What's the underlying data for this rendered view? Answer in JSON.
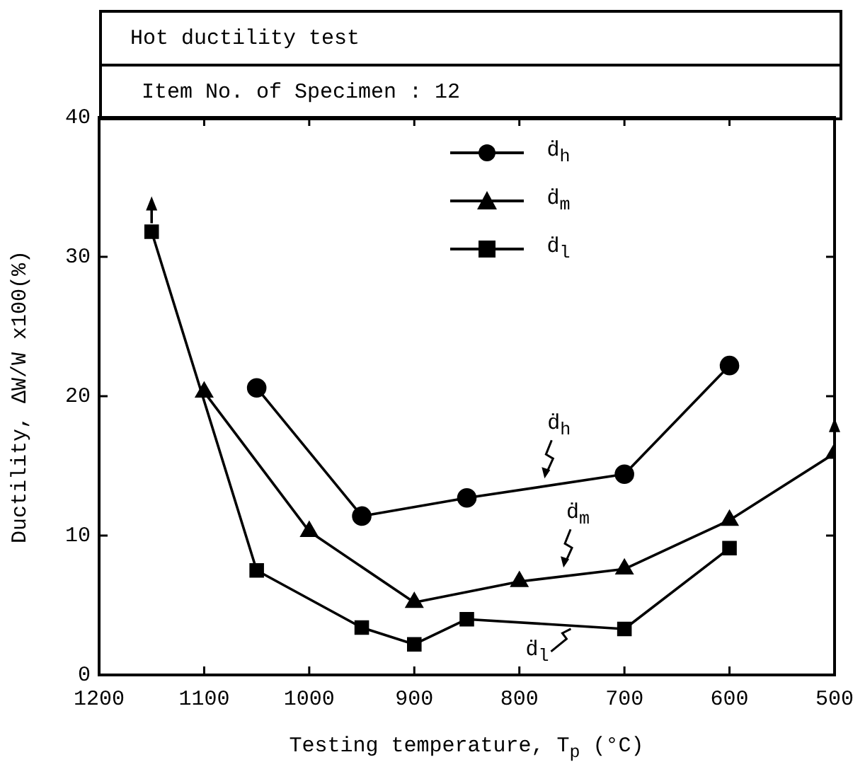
{
  "chart_data": {
    "type": "line",
    "title": "Hot ductility test",
    "subtitle": "Item No. of Specimen : 12",
    "xlabel": "Testing temperature, T$_{p}$ (°C)",
    "ylabel": "Ductility,   ΔW/W x100(%)",
    "xlim": [
      1200,
      500
    ],
    "xticks": [
      1200,
      1100,
      1000,
      900,
      800,
      700,
      600,
      500
    ],
    "ylim": [
      0,
      40
    ],
    "yticks": [
      0,
      10,
      20,
      30,
      40
    ],
    "grid": false,
    "legend": "top",
    "line_style": "solid",
    "series": [
      {
        "name": "ḋ$_{h}$",
        "color": "#000000",
        "marker": "circle",
        "x": [
          1050,
          950,
          850,
          700,
          600
        ],
        "values": [
          20.6,
          11.4,
          12.7,
          14.4,
          22.2
        ]
      },
      {
        "name": "ḋ$_{m}$",
        "color": "#000000",
        "marker": "triangle",
        "x": [
          1100,
          1000,
          900,
          800,
          700,
          600,
          500
        ],
        "values": [
          20.3,
          10.3,
          5.2,
          6.7,
          7.6,
          11.1,
          15.9
        ]
      },
      {
        "name": "ḋ$_{l}$",
        "color": "#000000",
        "marker": "square",
        "x": [
          1150,
          1050,
          950,
          900,
          850,
          700,
          600
        ],
        "values": [
          31.8,
          7.5,
          3.4,
          2.2,
          4.0,
          3.3,
          9.1
        ]
      }
    ],
    "annotations": [
      {
        "text": "ḋ$_{h}$",
        "x": 776,
        "y": 14
      },
      {
        "text": "ḋ$_{m}$",
        "x": 758,
        "y": 7.6
      },
      {
        "text": "ḋ$_{l}$",
        "x": 751,
        "y": 3.2
      }
    ]
  }
}
